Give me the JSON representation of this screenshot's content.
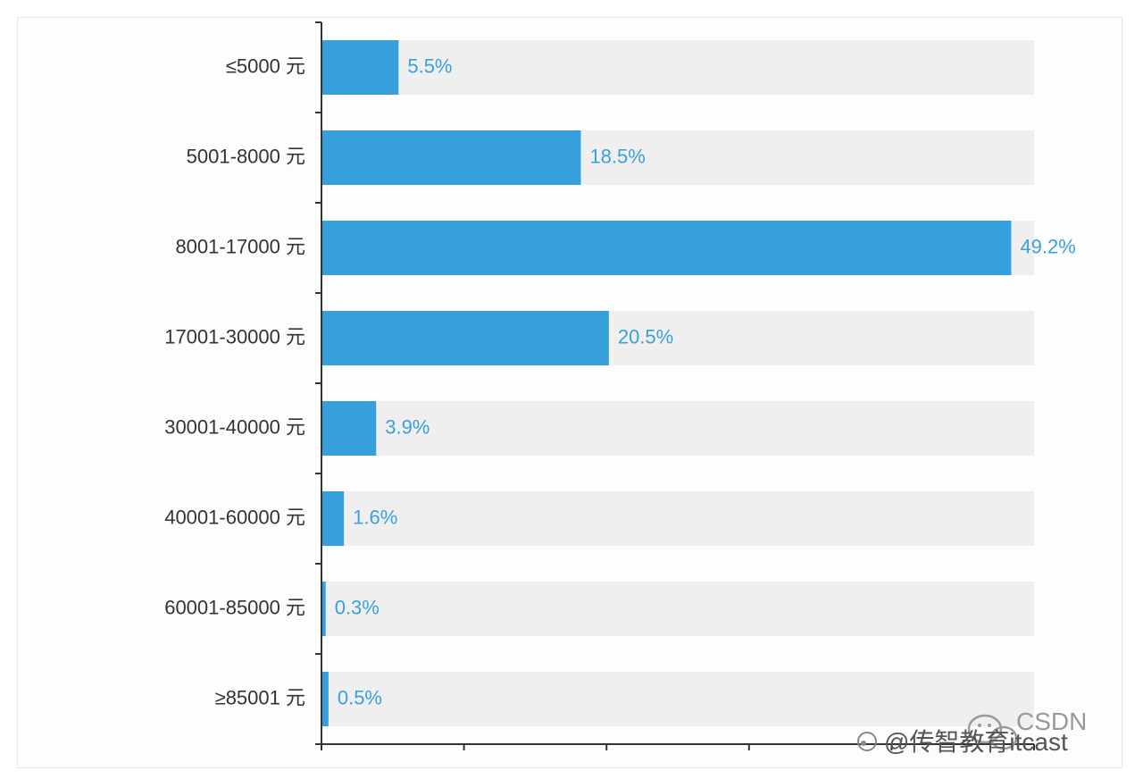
{
  "chart_data": {
    "type": "bar",
    "orientation": "horizontal",
    "categories": [
      "≤5000 元",
      "5001-8000 元",
      "8001-17000 元",
      "17001-30000 元",
      "30001-40000 元",
      "40001-60000 元",
      "60001-85000 元",
      "≥85001 元"
    ],
    "values": [
      5.5,
      18.5,
      49.2,
      20.5,
      3.9,
      1.6,
      0.3,
      0.5
    ],
    "value_labels": [
      "5.5%",
      "18.5%",
      "49.2%",
      "20.5%",
      "3.9%",
      "1.6%",
      "0.3%",
      "0.5%"
    ],
    "xlim": [
      0,
      50
    ],
    "background_bars": true,
    "grid": false,
    "colors": {
      "bar": "#369fdc",
      "bar_background": "#efefef",
      "label": "#3aa0dc",
      "axis": "#333333"
    }
  },
  "watermark": {
    "brand": "CSDN",
    "account": "@传智教育itcast"
  }
}
